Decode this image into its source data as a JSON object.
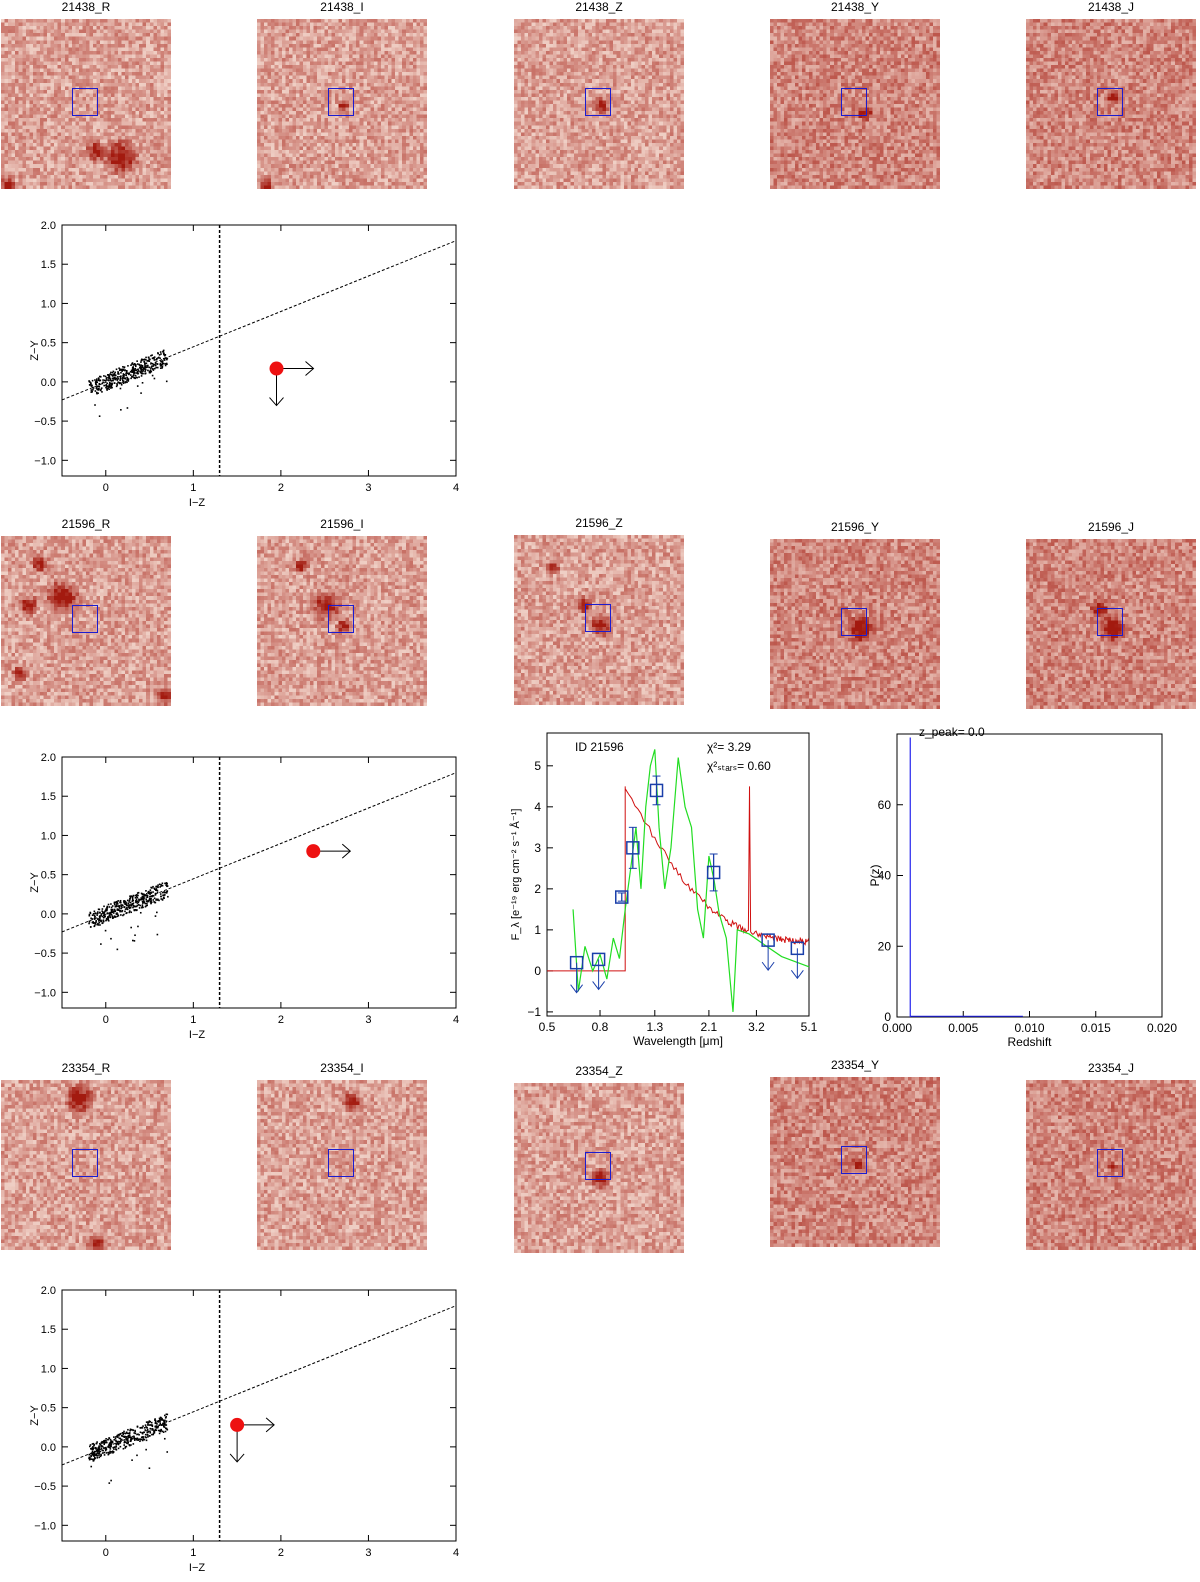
{
  "colors": {
    "stamp_light": "#fdf0e6",
    "stamp_dark": "#a31a0f",
    "box": "#1c1cd0",
    "source": "#ee1111",
    "sed_model": "#d01010",
    "star_model": "#22dd22",
    "photometry": "#1a3faa"
  },
  "rows": [
    {
      "id": "21438",
      "stamps": [
        "21438_R",
        "21438_I",
        "21438_Z",
        "21438_Y",
        "21438_J"
      ]
    },
    {
      "id": "21596",
      "stamps": [
        "21596_R",
        "21596_I",
        "21596_Z",
        "21596_Y",
        "21596_J"
      ]
    },
    {
      "id": "23354",
      "stamps": [
        "23354_R",
        "23354_I",
        "23354_Z",
        "23354_Y",
        "23354_J"
      ]
    }
  ],
  "chart_data": [
    {
      "type": "scatter",
      "id": "cc-21438",
      "xlabel": "I−Z",
      "ylabel": "Z−Y",
      "xlim": [
        -0.5,
        4
      ],
      "ylim": [
        -1.2,
        2.0
      ],
      "xticks": [
        "0",
        "1",
        "2",
        "3",
        "4"
      ],
      "yticks": [
        "−1.0",
        "−0.5",
        "0.0",
        "0.5",
        "1.0",
        "1.5",
        "2.0"
      ],
      "vline_x": 1.3,
      "line": {
        "x1": -0.5,
        "y1": -0.23,
        "x2": 4,
        "y2": 1.8
      },
      "source": {
        "x": 1.95,
        "y": 0.17,
        "xlimit": "lower",
        "ylimit": "upper"
      }
    },
    {
      "type": "scatter",
      "id": "cc-21596",
      "xlabel": "I−Z",
      "ylabel": "Z−Y",
      "xlim": [
        -0.5,
        4
      ],
      "ylim": [
        -1.2,
        2.0
      ],
      "xticks": [
        "0",
        "1",
        "2",
        "3",
        "4"
      ],
      "yticks": [
        "−1.0",
        "−0.5",
        "0.0",
        "0.5",
        "1.0",
        "1.5",
        "2.0"
      ],
      "vline_x": 1.3,
      "line": {
        "x1": -0.5,
        "y1": -0.23,
        "x2": 4,
        "y2": 1.8
      },
      "source": {
        "x": 2.37,
        "y": 0.8,
        "xlimit": "lower",
        "ylimit": "none"
      }
    },
    {
      "type": "scatter",
      "id": "cc-23354",
      "xlabel": "I−Z",
      "ylabel": "Z−Y",
      "xlim": [
        -0.5,
        4
      ],
      "ylim": [
        -1.2,
        2.0
      ],
      "xticks": [
        "0",
        "1",
        "2",
        "3",
        "4"
      ],
      "yticks": [
        "−1.0",
        "−0.5",
        "0.0",
        "0.5",
        "1.0",
        "1.5",
        "2.0"
      ],
      "vline_x": 1.3,
      "line": {
        "x1": -0.5,
        "y1": -0.23,
        "x2": 4,
        "y2": 1.8
      },
      "source": {
        "x": 1.5,
        "y": 0.28,
        "xlimit": "lower",
        "ylimit": "upper"
      }
    },
    {
      "type": "line",
      "id": "sed-21596",
      "label": "ID 21596",
      "chi2": "χ²=  3.29",
      "chi2_stars": "χ²ₛₜₐᵣₛ=  0.60",
      "xlabel": "Wavelength [μm]",
      "ylabel": "F_λ [e⁻¹⁹ erg cm⁻² s⁻¹ Å⁻¹]",
      "xticks": [
        "0.5",
        "0.8",
        "1.3",
        "2.1",
        "3.2",
        "5.1"
      ],
      "yticks": [
        "−1",
        "0",
        "1",
        "2",
        "3",
        "4",
        "5"
      ],
      "xlim": [
        0.5,
        5.1
      ],
      "ylim": [
        -1.1,
        5.8
      ],
      "photometry": [
        {
          "x": 0.65,
          "y": 0.2,
          "upper_limit": true
        },
        {
          "x": 0.79,
          "y": 0.28,
          "upper_limit": true
        },
        {
          "x": 0.97,
          "y": 1.8,
          "err": 0.1
        },
        {
          "x": 1.07,
          "y": 3.0,
          "err": 0.5
        },
        {
          "x": 1.32,
          "y": 4.4,
          "err": 0.35
        },
        {
          "x": 2.19,
          "y": 2.4,
          "err": 0.45
        },
        {
          "x": 3.55,
          "y": 0.75,
          "upper_limit": true
        },
        {
          "x": 4.6,
          "y": 0.55,
          "upper_limit": true
        }
      ]
    },
    {
      "type": "line",
      "id": "pz-21596",
      "xlabel": "Redshift",
      "ylabel": "P(z)",
      "title": "z_peak= 0.0",
      "xticks": [
        "0.000",
        "0.005",
        "0.010",
        "0.015",
        "0.020"
      ],
      "yticks": [
        "0",
        "20",
        "40",
        "60"
      ],
      "xlim": [
        0,
        0.02
      ],
      "ylim": [
        0,
        80
      ]
    }
  ]
}
